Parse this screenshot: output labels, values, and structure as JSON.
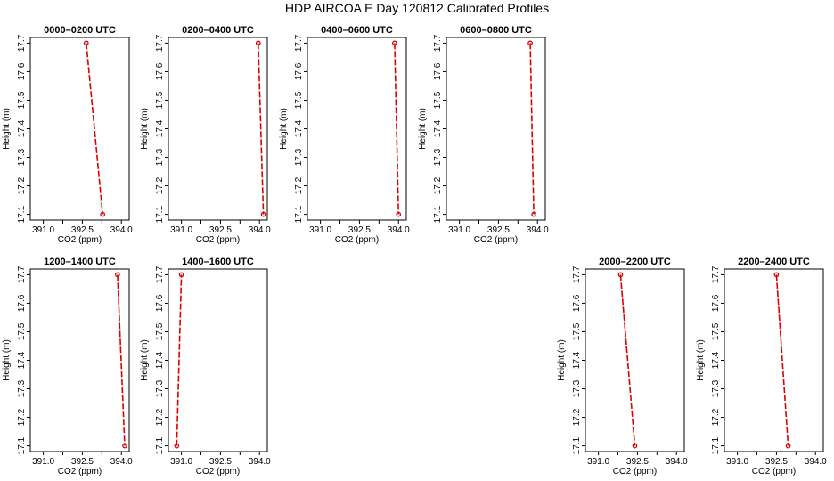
{
  "figure": {
    "title": "HDP AIRCOA E  Day 120812  Calibrated Profiles"
  },
  "chart_data": [
    {
      "type": "line",
      "title": "0000–0200 UTC",
      "xlabel": "CO2 (ppm)",
      "ylabel": "Height (m)",
      "xlim": [
        390.5,
        394.3
      ],
      "ylim": [
        17.08,
        17.72
      ],
      "xticks": [
        "391.0",
        "392.5",
        "394.0"
      ],
      "xticks_minor": [
        391.0,
        391.75,
        392.5,
        393.25,
        394.0
      ],
      "yticks": [
        "17.1",
        "17.2",
        "17.3",
        "17.4",
        "17.5",
        "17.6",
        "17.7"
      ],
      "series": [
        {
          "x": [
            392.65,
            393.28
          ],
          "y": [
            17.7,
            17.1
          ]
        }
      ]
    },
    {
      "type": "line",
      "title": "0200–0400 UTC",
      "xlabel": "CO2 (ppm)",
      "ylabel": "Height (m)",
      "xlim": [
        390.5,
        394.3
      ],
      "ylim": [
        17.08,
        17.72
      ],
      "xticks": [
        "391.0",
        "392.5",
        "394.0"
      ],
      "xticks_minor": [
        391.0,
        391.75,
        392.5,
        393.25,
        394.0
      ],
      "yticks": [
        "17.1",
        "17.2",
        "17.3",
        "17.4",
        "17.5",
        "17.6",
        "17.7"
      ],
      "series": [
        {
          "x": [
            393.95,
            394.15
          ],
          "y": [
            17.7,
            17.1
          ]
        }
      ]
    },
    {
      "type": "line",
      "title": "0400–0600 UTC",
      "xlabel": "CO2 (ppm)",
      "ylabel": "Height (m)",
      "xlim": [
        390.5,
        394.3
      ],
      "ylim": [
        17.08,
        17.72
      ],
      "xticks": [
        "391.0",
        "392.5",
        "394.0"
      ],
      "xticks_minor": [
        391.0,
        391.75,
        392.5,
        393.25,
        394.0
      ],
      "yticks": [
        "17.1",
        "17.2",
        "17.3",
        "17.4",
        "17.5",
        "17.6",
        "17.7"
      ],
      "series": [
        {
          "x": [
            393.85,
            394.0
          ],
          "y": [
            17.7,
            17.1
          ]
        }
      ]
    },
    {
      "type": "line",
      "title": "0600–0800 UTC",
      "xlabel": "CO2 (ppm)",
      "ylabel": "Height (m)",
      "xlim": [
        390.5,
        394.3
      ],
      "ylim": [
        17.08,
        17.72
      ],
      "xticks": [
        "391.0",
        "392.5",
        "394.0"
      ],
      "xticks_minor": [
        391.0,
        391.75,
        392.5,
        393.25,
        394.0
      ],
      "yticks": [
        "17.1",
        "17.2",
        "17.3",
        "17.4",
        "17.5",
        "17.6",
        "17.7"
      ],
      "series": [
        {
          "x": [
            393.72,
            393.86
          ],
          "y": [
            17.7,
            17.1
          ]
        }
      ]
    },
    {
      "type": "line",
      "title": "1200–1400 UTC",
      "xlabel": "CO2 (ppm)",
      "ylabel": "Height (m)",
      "xlim": [
        390.5,
        394.3
      ],
      "ylim": [
        17.08,
        17.72
      ],
      "xticks": [
        "391.0",
        "392.5",
        "394.0"
      ],
      "xticks_minor": [
        391.0,
        391.75,
        392.5,
        393.25,
        394.0
      ],
      "yticks": [
        "17.1",
        "17.2",
        "17.3",
        "17.4",
        "17.5",
        "17.6",
        "17.7"
      ],
      "series": [
        {
          "x": [
            393.85,
            394.13
          ],
          "y": [
            17.7,
            17.1
          ]
        }
      ]
    },
    {
      "type": "line",
      "title": "1400–1600 UTC",
      "xlabel": "CO2 (ppm)",
      "ylabel": "Height (m)",
      "xlim": [
        390.5,
        394.3
      ],
      "ylim": [
        17.08,
        17.72
      ],
      "xticks": [
        "391.0",
        "392.5",
        "394.0"
      ],
      "xticks_minor": [
        391.0,
        391.75,
        392.5,
        393.25,
        394.0
      ],
      "yticks": [
        "17.1",
        "17.2",
        "17.3",
        "17.4",
        "17.5",
        "17.6",
        "17.7"
      ],
      "series": [
        {
          "x": [
            390.82,
            391.0
          ],
          "y": [
            17.1,
            17.7
          ]
        }
      ]
    },
    {
      "type": "line",
      "title": "2000–2200 UTC",
      "xlabel": "CO2 (ppm)",
      "ylabel": "Height (m)",
      "xlim": [
        390.5,
        394.3
      ],
      "ylim": [
        17.08,
        17.72
      ],
      "xticks": [
        "391.0",
        "392.5",
        "394.0"
      ],
      "xticks_minor": [
        391.0,
        391.75,
        392.5,
        393.25,
        394.0
      ],
      "yticks": [
        "17.1",
        "17.2",
        "17.3",
        "17.4",
        "17.5",
        "17.6",
        "17.7"
      ],
      "series": [
        {
          "x": [
            391.85,
            392.4
          ],
          "y": [
            17.7,
            17.1
          ]
        }
      ]
    },
    {
      "type": "line",
      "title": "2200–2400 UTC",
      "xlabel": "CO2 (ppm)",
      "ylabel": "Height (m)",
      "xlim": [
        390.5,
        394.3
      ],
      "ylim": [
        17.08,
        17.72
      ],
      "xticks": [
        "391.0",
        "392.5",
        "394.0"
      ],
      "xticks_minor": [
        391.0,
        391.75,
        392.5,
        393.25,
        394.0
      ],
      "yticks": [
        "17.1",
        "17.2",
        "17.3",
        "17.4",
        "17.5",
        "17.6",
        "17.7"
      ],
      "series": [
        {
          "x": [
            392.5,
            392.95
          ],
          "y": [
            17.7,
            17.1
          ]
        }
      ]
    }
  ]
}
